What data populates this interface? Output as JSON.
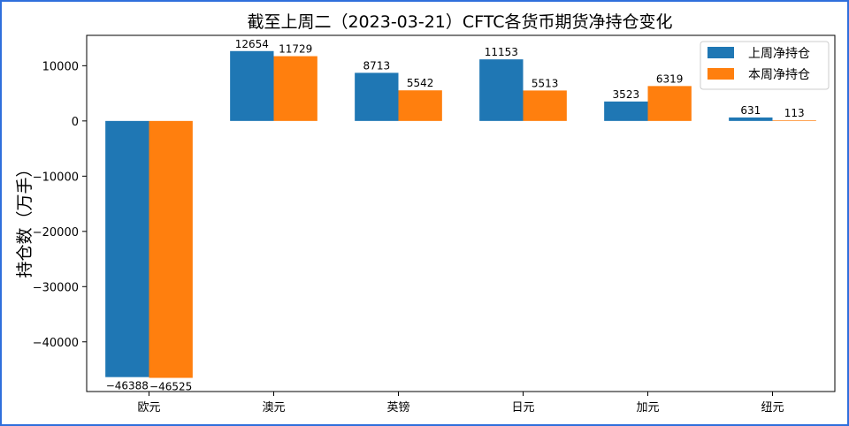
{
  "chart_data": {
    "type": "bar",
    "title": "截至上周二（2023-03-21）CFTC各货币期货净持仓变化",
    "xlabel": "",
    "ylabel": "持仓数（万手）",
    "categories": [
      "欧元",
      "澳元",
      "英镑",
      "日元",
      "加元",
      "纽元"
    ],
    "series": [
      {
        "name": "上周净持仓",
        "color": "#1f77b4",
        "values": [
          -46388,
          12654,
          8713,
          11153,
          3523,
          631
        ]
      },
      {
        "name": "本周净持仓",
        "color": "#ff7f0e",
        "values": [
          -46525,
          11729,
          5542,
          5513,
          6319,
          113
        ]
      }
    ],
    "yticks": [
      10000,
      0,
      -10000,
      -20000,
      -30000,
      -40000
    ],
    "ylim": [
      -49000,
      15500
    ],
    "legend": "top-right",
    "grid": false
  },
  "frame_color": "#2f6fdc"
}
